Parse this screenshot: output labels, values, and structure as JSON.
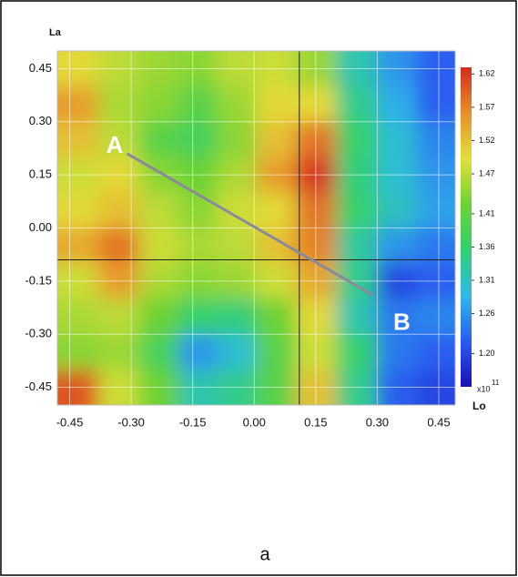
{
  "chart_data": {
    "type": "heatmap",
    "x_label": "Lo",
    "y_label": "La",
    "x": [
      -0.43,
      -0.33,
      -0.23,
      -0.14,
      -0.04,
      0.05,
      0.15,
      0.25,
      0.35,
      0.44
    ],
    "y": [
      0.45,
      0.35,
      0.25,
      0.15,
      0.05,
      -0.05,
      -0.15,
      -0.25,
      -0.35,
      -0.45
    ],
    "values": [
      [
        1.5,
        1.47,
        1.45,
        1.44,
        1.47,
        1.48,
        1.45,
        1.32,
        1.26,
        1.22
      ],
      [
        1.55,
        1.46,
        1.44,
        1.4,
        1.45,
        1.5,
        1.5,
        1.34,
        1.28,
        1.22
      ],
      [
        1.52,
        1.47,
        1.4,
        1.38,
        1.44,
        1.52,
        1.58,
        1.36,
        1.3,
        1.25
      ],
      [
        1.48,
        1.5,
        1.44,
        1.42,
        1.46,
        1.55,
        1.62,
        1.35,
        1.3,
        1.26
      ],
      [
        1.5,
        1.52,
        1.47,
        1.44,
        1.48,
        1.5,
        1.58,
        1.36,
        1.31,
        1.27
      ],
      [
        1.54,
        1.58,
        1.48,
        1.46,
        1.47,
        1.52,
        1.57,
        1.33,
        1.26,
        1.24
      ],
      [
        1.48,
        1.55,
        1.46,
        1.44,
        1.45,
        1.48,
        1.54,
        1.34,
        1.2,
        1.22
      ],
      [
        1.46,
        1.47,
        1.42,
        1.36,
        1.35,
        1.42,
        1.5,
        1.32,
        1.24,
        1.25
      ],
      [
        1.44,
        1.45,
        1.38,
        1.26,
        1.3,
        1.4,
        1.48,
        1.36,
        1.24,
        1.22
      ],
      [
        1.6,
        1.48,
        1.42,
        1.32,
        1.34,
        1.4,
        1.52,
        1.34,
        1.22,
        1.2
      ]
    ],
    "xlim": [
      -0.48,
      0.49
    ],
    "ylim": [
      -0.5,
      0.5
    ],
    "xticks": [
      {
        "value": -0.45,
        "label": "-0.45"
      },
      {
        "value": -0.3,
        "label": "-0.30"
      },
      {
        "value": -0.15,
        "label": "-0.15"
      },
      {
        "value": 0,
        "label": "0.00"
      },
      {
        "value": 0.15,
        "label": "0.15"
      },
      {
        "value": 0.3,
        "label": "0.30"
      },
      {
        "value": 0.45,
        "label": "0.45"
      }
    ],
    "yticks": [
      {
        "value": 0.45,
        "label": "0.45"
      },
      {
        "value": 0.3,
        "label": "0.30"
      },
      {
        "value": 0.15,
        "label": "0.15"
      },
      {
        "value": 0,
        "label": "0.00"
      },
      {
        "value": -0.15,
        "label": "-0.15"
      },
      {
        "value": -0.3,
        "label": "-0.30"
      },
      {
        "value": -0.45,
        "label": "-0.45"
      }
    ],
    "grid": true,
    "colormap": [
      "#1a10b8",
      "#2a5cf0",
      "#2fb8e8",
      "#30d070",
      "#6ed232",
      "#e2e03a",
      "#e8902a",
      "#d42a1e"
    ],
    "colorbar_lim": [
      1.15,
      1.63
    ],
    "colorbar_ticks": [
      1.62,
      1.57,
      1.52,
      1.47,
      1.41,
      1.36,
      1.31,
      1.26,
      {
        "value": 1.2,
        "label": "1.20"
      }
    ],
    "colorbar_unit": {
      "base": "x10",
      "exponent": "11"
    },
    "crosshair": {
      "x": 0.11,
      "y": -0.09
    },
    "profile_line": {
      "from": [
        -0.31,
        0.21
      ],
      "to": [
        0.29,
        -0.19
      ]
    },
    "annotations": [
      {
        "text": "A",
        "x": -0.34,
        "y": 0.23
      },
      {
        "text": "B",
        "x": 0.36,
        "y": -0.27
      }
    ]
  },
  "caption": "a"
}
